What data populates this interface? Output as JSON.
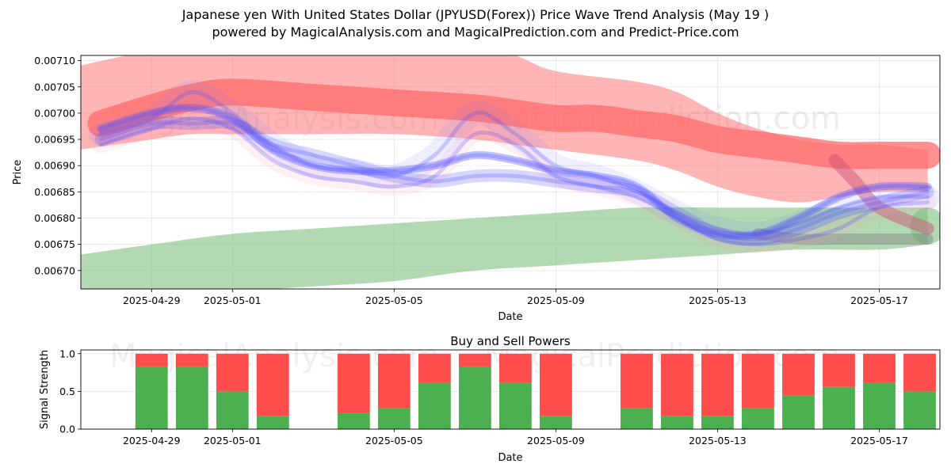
{
  "title": "Japanese yen With United States Dollar (JPYUSD(Forex)) Price Wave Trend Analysis (May 19 )",
  "subtitle": "powered by MagicalAnalysis.com and MagicalPrediction.com and Predict-Price.com",
  "watermarks": [
    "MagicalAnalysis.com",
    "MagicalPrediction.com"
  ],
  "colors": {
    "up_band": "#ff6b6b",
    "down_band": "#7fbf7f",
    "wave": "#4d4dff",
    "buy": "#4caf50",
    "sell": "#ff4d4d",
    "grid": "#e6e6e6"
  },
  "chart_data": [
    {
      "type": "area",
      "name": "price-wave-trend",
      "title": "",
      "xlabel": "Date",
      "ylabel": "Price",
      "x_range_days": [
        -1.75,
        19.5
      ],
      "ylim": [
        0.006665,
        0.00711
      ],
      "x_ticks": [
        {
          "day": 0,
          "label": "2025-04-29"
        },
        {
          "day": 2,
          "label": "2025-05-01"
        },
        {
          "day": 6,
          "label": "2025-05-05"
        },
        {
          "day": 10,
          "label": "2025-05-09"
        },
        {
          "day": 14,
          "label": "2025-05-13"
        },
        {
          "day": 18,
          "label": "2025-05-17"
        }
      ],
      "y_ticks": [
        "0.00670",
        "0.00675",
        "0.00680",
        "0.00685",
        "0.00690",
        "0.00695",
        "0.00700",
        "0.00705",
        "0.00710"
      ],
      "red_band_upper": {
        "x": [
          -1.8,
          0,
          1,
          2,
          4,
          6,
          8,
          9,
          10,
          12,
          13,
          14,
          15,
          16,
          17,
          18,
          19.2
        ],
        "y": [
          0.00709,
          0.00712,
          0.00713,
          0.00713,
          0.00713,
          0.00713,
          0.00713,
          0.00711,
          0.00708,
          0.00706,
          0.00704,
          0.007,
          0.00697,
          0.00695,
          0.00694,
          0.00694,
          0.00693
        ]
      },
      "red_band_lower": {
        "x": [
          -1.8,
          0,
          1,
          2,
          4,
          6,
          8,
          9,
          10,
          12,
          13,
          14,
          15,
          16,
          17,
          18,
          19.2
        ],
        "y": [
          0.00693,
          0.00695,
          0.00696,
          0.00696,
          0.00696,
          0.00696,
          0.00695,
          0.00694,
          0.00693,
          0.00691,
          0.00689,
          0.00686,
          0.00684,
          0.00683,
          0.00684,
          0.00685,
          0.00685
        ]
      },
      "green_band_upper": {
        "x": [
          -1.8,
          0,
          2,
          4,
          6,
          8,
          10,
          12,
          14,
          16,
          18,
          19.2
        ],
        "y": [
          0.00673,
          0.00675,
          0.00677,
          0.00678,
          0.00679,
          0.0068,
          0.00681,
          0.00682,
          0.00682,
          0.00682,
          0.00682,
          0.00682
        ]
      },
      "green_band_lower": {
        "x": [
          -1.8,
          0,
          2,
          4,
          6,
          8,
          10,
          12,
          14,
          16,
          18,
          19.2
        ],
        "y": [
          0.00665,
          0.00665,
          0.00666,
          0.00667,
          0.00668,
          0.0067,
          0.00671,
          0.00672,
          0.00673,
          0.00674,
          0.00674,
          0.00675
        ]
      },
      "wave_series": [
        {
          "name": "wave-1",
          "x": [
            -1.25,
            0,
            1,
            2,
            3,
            4,
            5,
            6,
            7,
            8,
            9,
            10,
            11,
            12,
            13,
            14,
            15,
            16,
            17,
            18,
            19.2
          ],
          "y": [
            0.00696,
            0.00699,
            0.00704,
            0.007,
            0.00694,
            0.0069,
            0.00689,
            0.00688,
            0.00692,
            0.007,
            0.00696,
            0.0069,
            0.00688,
            0.00685,
            0.00681,
            0.00678,
            0.00677,
            0.00679,
            0.00682,
            0.00684,
            0.00684
          ]
        },
        {
          "name": "wave-2",
          "x": [
            -1.25,
            0,
            1,
            2,
            3,
            4,
            5,
            6,
            7,
            8,
            9,
            10,
            11,
            12,
            13,
            14,
            15,
            16,
            17,
            18,
            19.2
          ],
          "y": [
            0.00694,
            0.00697,
            0.00699,
            0.00697,
            0.00691,
            0.00688,
            0.00687,
            0.00686,
            0.00688,
            0.00696,
            0.00694,
            0.00688,
            0.00686,
            0.00684,
            0.0068,
            0.00676,
            0.00675,
            0.00676,
            0.00678,
            0.00682,
            0.00683
          ]
        },
        {
          "name": "wave-3",
          "x": [
            -1.25,
            0,
            1,
            2,
            3,
            4,
            5,
            6,
            7,
            8,
            9,
            10,
            11,
            12,
            13,
            14,
            15,
            16,
            17,
            18,
            19.2
          ],
          "y": [
            0.00695,
            0.00698,
            0.00698,
            0.00698,
            0.00694,
            0.00692,
            0.0069,
            0.00688,
            0.00687,
            0.00688,
            0.00688,
            0.00687,
            0.00686,
            0.00685,
            0.00681,
            0.00677,
            0.00676,
            0.00678,
            0.00681,
            0.00683,
            0.00685
          ]
        },
        {
          "name": "wave-4",
          "x": [
            -1.25,
            0,
            1,
            2,
            3,
            4,
            5,
            6,
            7,
            8,
            9,
            10,
            11,
            12,
            13,
            14,
            15,
            16,
            17,
            18,
            19.2
          ],
          "y": [
            0.00697,
            0.007,
            0.00701,
            0.00699,
            0.00693,
            0.0069,
            0.00689,
            0.00689,
            0.0069,
            0.00692,
            0.00691,
            0.00689,
            0.00688,
            0.00686,
            0.0068,
            0.00677,
            0.00677,
            0.0068,
            0.00684,
            0.00686,
            0.00686
          ]
        }
      ],
      "red_center": {
        "x": [
          -1.25,
          0,
          1,
          2,
          4,
          6,
          8,
          9,
          10,
          11,
          12,
          13,
          14,
          15,
          16,
          17,
          18,
          19.2
        ],
        "y": [
          0.00698,
          0.00701,
          0.00703,
          0.00704,
          0.00703,
          0.00702,
          0.00701,
          0.007,
          0.00699,
          0.00699,
          0.00698,
          0.00697,
          0.00695,
          0.00694,
          0.00693,
          0.00692,
          0.00692,
          0.00692
        ]
      },
      "tail_segments": [
        {
          "name": "tail-red",
          "x": [
            16.9,
            17.4,
            18,
            19.2
          ],
          "y": [
            0.00691,
            0.00687,
            0.00682,
            0.00678
          ]
        },
        {
          "name": "tail-grey",
          "x": [
            15,
            16,
            17,
            18,
            19.2
          ],
          "y": [
            0.00677,
            0.00676,
            0.00676,
            0.00676,
            0.00676
          ]
        }
      ]
    },
    {
      "type": "bar",
      "name": "buy-and-sell-powers",
      "title": "Buy and Sell Powers",
      "xlabel": "Date",
      "ylabel": "Signal Strength",
      "x_range_days": [
        -1.75,
        19.5
      ],
      "ylim": [
        0,
        1.05
      ],
      "x_ticks": [
        {
          "day": 0,
          "label": "2025-04-29"
        },
        {
          "day": 2,
          "label": "2025-05-01"
        },
        {
          "day": 6,
          "label": "2025-05-05"
        },
        {
          "day": 10,
          "label": "2025-05-09"
        },
        {
          "day": 14,
          "label": "2025-05-13"
        },
        {
          "day": 18,
          "label": "2025-05-17"
        }
      ],
      "y_ticks": [
        "0.0",
        "0.5",
        "1.0"
      ],
      "days": [
        0,
        1,
        2,
        3,
        5,
        6,
        7,
        8,
        9,
        10,
        12,
        13,
        14,
        15,
        16,
        17,
        18,
        19
      ],
      "buy": [
        0.83,
        0.83,
        0.5,
        0.17,
        0.22,
        0.28,
        0.61,
        0.83,
        0.61,
        0.17,
        0.28,
        0.17,
        0.17,
        0.28,
        0.45,
        0.56,
        0.61,
        0.5
      ],
      "sell": [
        0.17,
        0.17,
        0.5,
        0.83,
        0.78,
        0.72,
        0.39,
        0.17,
        0.39,
        0.83,
        0.72,
        0.83,
        0.83,
        0.72,
        0.55,
        0.44,
        0.39,
        0.5
      ]
    }
  ]
}
